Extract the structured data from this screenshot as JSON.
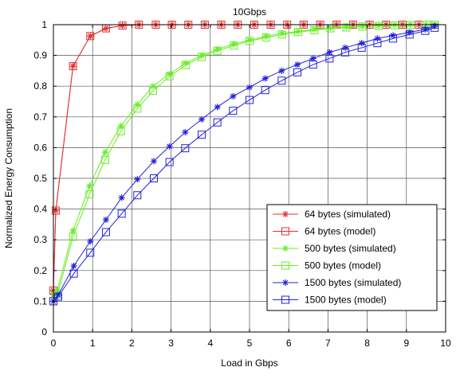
{
  "chart_data": {
    "type": "line",
    "title": "10Gbps",
    "xlabel": "Load in Gbps",
    "ylabel": "Normalized Energy Consumption",
    "xlim": [
      0,
      10
    ],
    "ylim": [
      0,
      1
    ],
    "xticks": [
      0,
      1,
      2,
      3,
      4,
      5,
      6,
      7,
      8,
      9,
      10
    ],
    "yticks": [
      0,
      0.1,
      0.2,
      0.3,
      0.4,
      0.5,
      0.6,
      0.7,
      0.8,
      0.9,
      1
    ],
    "grid": true,
    "legend_position": "bottom-right",
    "series": [
      {
        "name": "64 bytes (simulated)",
        "color": "#e03030",
        "marker": "star",
        "x": [
          0.0,
          0.06,
          0.5,
          0.94,
          1.34,
          1.76,
          2.18,
          2.61,
          3.02,
          3.44,
          3.86,
          4.28,
          4.7,
          5.12,
          5.54,
          5.96,
          6.38,
          6.8,
          7.22,
          7.64,
          8.06,
          8.48,
          8.9,
          9.32,
          9.72
        ],
        "y": [
          0.135,
          0.395,
          0.865,
          0.963,
          0.988,
          0.997,
          1.0,
          1.0,
          1.0,
          1.0,
          1.0,
          1.0,
          1.0,
          1.0,
          1.0,
          1.0,
          1.0,
          1.0,
          1.0,
          1.0,
          1.0,
          1.0,
          1.0,
          1.0,
          1.0
        ]
      },
      {
        "name": "64 bytes (model)",
        "color": "#e03030",
        "marker": "square",
        "x": [
          0.0,
          0.06,
          0.5,
          0.94,
          1.34,
          1.76,
          2.18,
          2.61,
          3.02,
          3.44,
          3.86,
          4.28,
          4.7,
          5.12,
          5.54,
          5.96,
          6.38,
          6.8,
          7.22,
          7.64,
          8.06,
          8.48,
          8.9,
          9.32,
          9.72
        ],
        "y": [
          0.135,
          0.395,
          0.865,
          0.963,
          0.988,
          0.997,
          1.0,
          1.0,
          1.0,
          1.0,
          1.0,
          1.0,
          1.0,
          1.0,
          1.0,
          1.0,
          1.0,
          1.0,
          1.0,
          1.0,
          1.0,
          1.0,
          1.0,
          1.0,
          1.0
        ]
      },
      {
        "name": "500 bytes (simulated)",
        "color": "#66ee22",
        "marker": "star",
        "x": [
          0.0,
          0.1,
          0.5,
          0.92,
          1.32,
          1.72,
          2.14,
          2.54,
          2.96,
          3.37,
          3.78,
          4.18,
          4.6,
          5.0,
          5.42,
          5.83,
          6.24,
          6.65,
          7.06,
          7.47,
          7.88,
          8.29,
          8.7,
          9.1,
          9.5,
          9.72
        ],
        "y": [
          0.12,
          0.135,
          0.33,
          0.475,
          0.585,
          0.67,
          0.74,
          0.8,
          0.84,
          0.875,
          0.9,
          0.92,
          0.937,
          0.95,
          0.962,
          0.972,
          0.978,
          0.985,
          0.99,
          0.993,
          0.995,
          0.997,
          0.999,
          1.0,
          1.0,
          1.0
        ]
      },
      {
        "name": "500 bytes (model)",
        "color": "#66ee22",
        "marker": "square",
        "x": [
          0.0,
          0.1,
          0.5,
          0.92,
          1.32,
          1.72,
          2.14,
          2.54,
          2.96,
          3.37,
          3.78,
          4.18,
          4.6,
          5.0,
          5.42,
          5.83,
          6.24,
          6.65,
          7.06,
          7.47,
          7.88,
          8.29,
          8.7,
          9.1,
          9.5,
          9.72
        ],
        "y": [
          0.1,
          0.12,
          0.31,
          0.448,
          0.56,
          0.653,
          0.727,
          0.785,
          0.832,
          0.868,
          0.895,
          0.915,
          0.932,
          0.947,
          0.958,
          0.968,
          0.976,
          0.982,
          0.988,
          0.991,
          0.994,
          0.996,
          0.998,
          0.999,
          1.0,
          1.0
        ]
      },
      {
        "name": "1500 bytes (simulated)",
        "color": "#2222dd",
        "marker": "star",
        "x": [
          0.0,
          0.12,
          0.52,
          0.94,
          1.34,
          1.74,
          2.14,
          2.56,
          2.96,
          3.36,
          3.78,
          4.18,
          4.58,
          5.0,
          5.4,
          5.82,
          6.22,
          6.62,
          7.04,
          7.44,
          7.86,
          8.26,
          8.66,
          9.08,
          9.48,
          9.72
        ],
        "y": [
          0.1,
          0.12,
          0.215,
          0.295,
          0.365,
          0.437,
          0.497,
          0.556,
          0.604,
          0.65,
          0.692,
          0.732,
          0.767,
          0.796,
          0.825,
          0.85,
          0.87,
          0.89,
          0.91,
          0.925,
          0.94,
          0.955,
          0.965,
          0.975,
          0.985,
          0.995
        ]
      },
      {
        "name": "1500 bytes (model)",
        "color": "#2222dd",
        "marker": "square",
        "x": [
          0.0,
          0.12,
          0.52,
          0.94,
          1.34,
          1.74,
          2.14,
          2.56,
          2.96,
          3.36,
          3.78,
          4.18,
          4.58,
          5.0,
          5.4,
          5.82,
          6.22,
          6.62,
          7.04,
          7.44,
          7.86,
          8.26,
          8.66,
          9.08,
          9.48,
          9.72
        ],
        "y": [
          0.1,
          0.115,
          0.19,
          0.258,
          0.325,
          0.385,
          0.445,
          0.5,
          0.553,
          0.598,
          0.642,
          0.682,
          0.72,
          0.755,
          0.787,
          0.818,
          0.845,
          0.87,
          0.89,
          0.91,
          0.925,
          0.94,
          0.955,
          0.968,
          0.98,
          0.99
        ]
      }
    ]
  }
}
